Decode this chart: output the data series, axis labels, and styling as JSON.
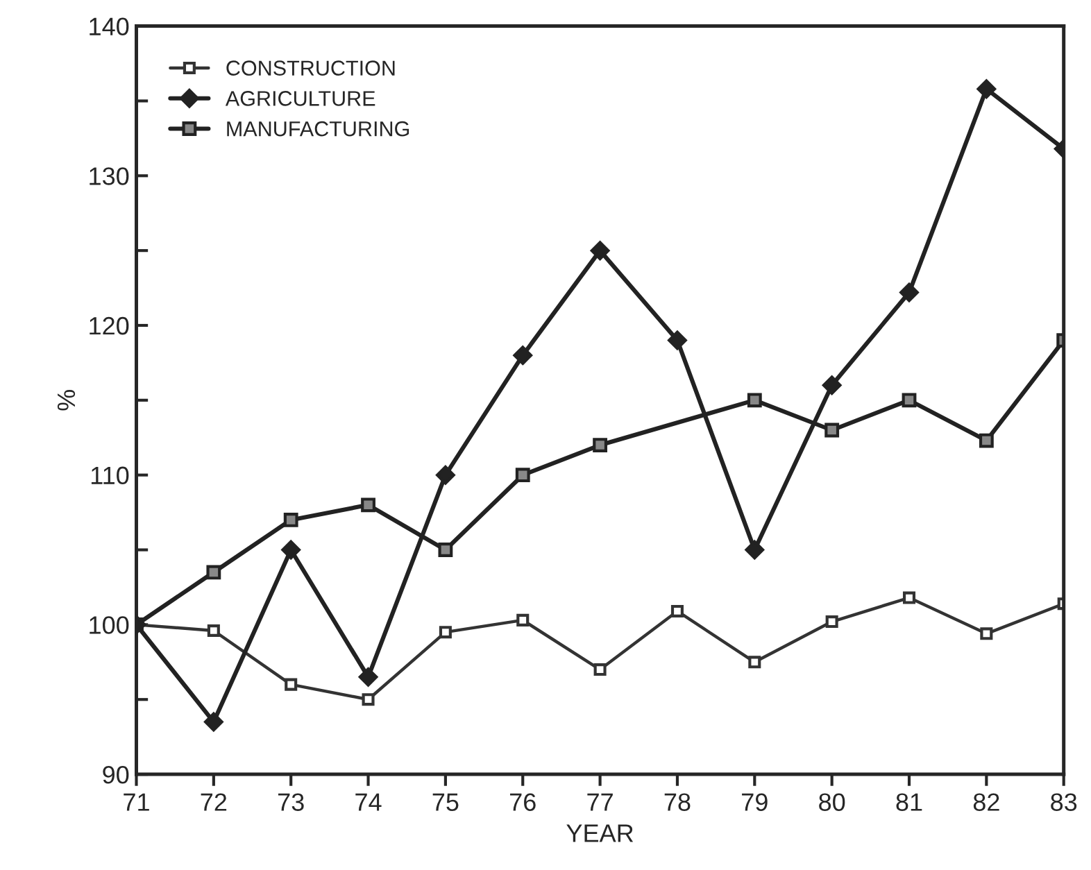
{
  "chart_data": {
    "type": "line",
    "xlabel": "YEAR",
    "ylabel": "%",
    "x": [
      71,
      72,
      73,
      74,
      75,
      76,
      77,
      78,
      79,
      80,
      81,
      82,
      83
    ],
    "series": [
      {
        "name": "CONSTRUCTION",
        "color": "#333333",
        "marker": "square",
        "values": [
          100,
          99.6,
          96,
          95,
          99.5,
          100.3,
          97,
          100.9,
          97.5,
          100.2,
          101.8,
          99.4,
          101.4
        ]
      },
      {
        "name": "AGRICULTURE",
        "color": "#222222",
        "marker": "diamond",
        "values": [
          100,
          93.5,
          105,
          96.5,
          110,
          118,
          125,
          119,
          105,
          116,
          122.2,
          135.8,
          131.8
        ]
      },
      {
        "name": "MANUFACTURING",
        "color": "#222222",
        "marker": "square",
        "x": [
          71,
          72,
          73,
          74,
          75,
          76,
          77,
          79,
          80,
          81,
          82,
          83
        ],
        "values": [
          100,
          103.5,
          107,
          108,
          105,
          110,
          112,
          115,
          113,
          115,
          112.3,
          119
        ]
      }
    ],
    "xlim": [
      71,
      83
    ],
    "xticks": [
      71,
      72,
      73,
      74,
      75,
      76,
      77,
      78,
      79,
      80,
      81,
      82,
      83
    ],
    "ylim": [
      90,
      140
    ],
    "yticks": [
      90,
      {
        "value": 95,
        "label": null
      },
      100,
      {
        "value": 105,
        "label": null
      },
      110,
      {
        "value": 115,
        "label": null
      },
      120,
      {
        "value": 125,
        "label": null
      },
      130,
      {
        "value": 135,
        "label": null
      },
      140
    ],
    "grid": false,
    "legend": "top left",
    "line_style": "solid"
  }
}
